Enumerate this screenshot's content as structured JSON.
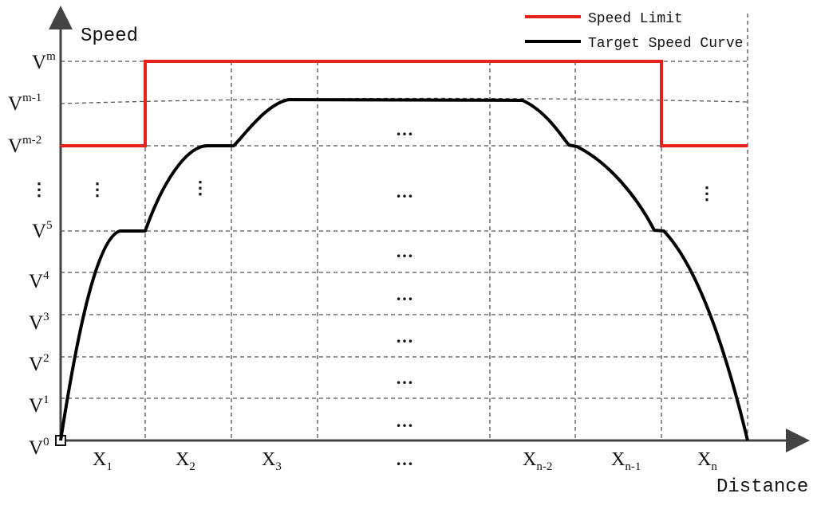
{
  "axes": {
    "y_title": "Speed",
    "x_title": "Distance"
  },
  "legend": {
    "items": [
      {
        "label": "Speed Limit",
        "color": "#e8211b"
      },
      {
        "label": "Target Speed Curve",
        "color": "#000000"
      }
    ]
  },
  "y_levels": [
    {
      "base": "V",
      "sup": "m"
    },
    {
      "base": "V",
      "sup": "m-1"
    },
    {
      "base": "V",
      "sup": "m-2"
    },
    {
      "base": "⋮",
      "sup": ""
    },
    {
      "base": "V",
      "sup": "5"
    },
    {
      "base": "V",
      "sup": "4"
    },
    {
      "base": "V",
      "sup": "3"
    },
    {
      "base": "V",
      "sup": "2"
    },
    {
      "base": "V",
      "sup": "1"
    },
    {
      "base": "V",
      "sup": "0"
    }
  ],
  "x_segments": [
    {
      "base": "X",
      "sub": "1"
    },
    {
      "base": "X",
      "sub": "2"
    },
    {
      "base": "X",
      "sub": "3"
    },
    {
      "base": "…",
      "sub": ""
    },
    {
      "base": "X",
      "sub": "n-2"
    },
    {
      "base": "X",
      "sub": "n-1"
    },
    {
      "base": "X",
      "sub": "n"
    }
  ],
  "ellipsis": {
    "horizontal": "…",
    "vertical": "⋮"
  },
  "colors": {
    "speed_limit": "#e8211b",
    "target_curve": "#000000",
    "grid": "#555555",
    "axis": "#444444"
  }
}
